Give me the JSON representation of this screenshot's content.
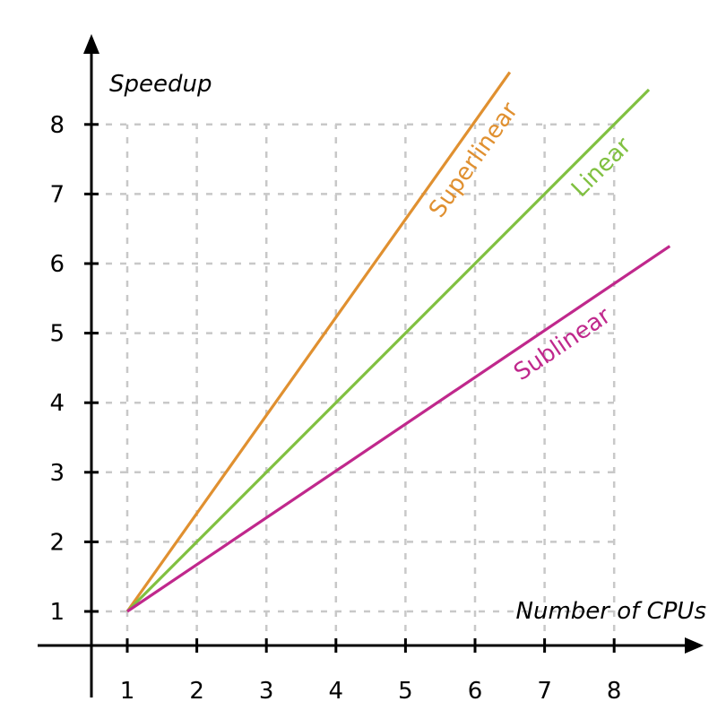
{
  "chart_data": {
    "type": "line",
    "title": "",
    "xlabel": "Number of CPUs",
    "ylabel": "Speedup",
    "x_ticks": [
      1,
      2,
      3,
      4,
      5,
      6,
      7,
      8
    ],
    "y_ticks": [
      1,
      2,
      3,
      4,
      5,
      6,
      7,
      8
    ],
    "xlim": [
      0.5,
      9.0
    ],
    "ylim": [
      0.5,
      8.9
    ],
    "grid": true,
    "legend": "inline labels",
    "series": [
      {
        "name": "Superlinear",
        "color": "#e09030",
        "x": [
          1,
          6.5
        ],
        "y": [
          1,
          8.75
        ]
      },
      {
        "name": "Linear",
        "color": "#80c040",
        "x": [
          1,
          8.5
        ],
        "y": [
          1,
          8.5
        ]
      },
      {
        "name": "Sublinear",
        "color": "#c0288c",
        "x": [
          1,
          8.8
        ],
        "y": [
          1,
          6.25
        ]
      }
    ]
  }
}
